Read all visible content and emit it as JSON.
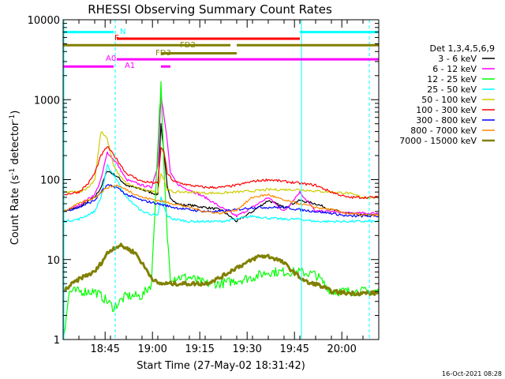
{
  "chart_data": {
    "type": "line",
    "title": "RHESSI Observing Summary Count Rates",
    "xlabel": "Start Time (27-May-02 18:31:42)",
    "ylabel_main": "Count Rate (s",
    "ylabel_sup1": "-1",
    "ylabel_mid": " detector",
    "ylabel_sup2": "-1",
    "ylabel_end": ")",
    "y_scale": "log",
    "ylim": [
      1,
      10000
    ],
    "xlim_minutes": [
      0,
      100
    ],
    "x_tick_minutes": [
      13.3,
      28.3,
      43.3,
      58.3,
      73.3,
      88.3
    ],
    "x_tick_labels": [
      "18:45",
      "19:00",
      "19:15",
      "19:30",
      "19:45",
      "20:00"
    ],
    "y_tick_values": [
      1,
      10,
      100,
      1000,
      10000
    ],
    "y_tick_labels": [
      "1",
      "10",
      "100",
      "1000",
      "10000"
    ],
    "legend_title": "Det 1,3,4,5,6,9",
    "legend_position": "right",
    "timestamp": "16-Oct-2021 08:28",
    "series": [
      {
        "name": "3 - 6 keV",
        "color": "#000000",
        "x": [
          0,
          5,
          10,
          12,
          14,
          17,
          20,
          25,
          30,
          31,
          32,
          33,
          34,
          36,
          38,
          40,
          45,
          50,
          55,
          60,
          65,
          70,
          75,
          80,
          85,
          90,
          95,
          100
        ],
        "y": [
          40,
          45,
          60,
          80,
          130,
          110,
          85,
          75,
          65,
          500,
          200,
          80,
          60,
          50,
          48,
          48,
          45,
          42,
          30,
          40,
          55,
          45,
          55,
          50,
          42,
          38,
          36,
          36
        ]
      },
      {
        "name": "6 - 12 keV",
        "color": "#ff00ff",
        "x": [
          0,
          5,
          10,
          12,
          14,
          17,
          20,
          25,
          28,
          30,
          31,
          32,
          33,
          34,
          36,
          38,
          40,
          45,
          50,
          55,
          60,
          65,
          70,
          75,
          80,
          85,
          90,
          95,
          100
        ],
        "y": [
          40,
          48,
          65,
          100,
          220,
          160,
          100,
          85,
          80,
          150,
          1200,
          600,
          300,
          120,
          90,
          80,
          75,
          60,
          45,
          35,
          45,
          60,
          40,
          70,
          40,
          40,
          38,
          38,
          38
        ]
      },
      {
        "name": "12 - 25 keV",
        "color": "#00ff00",
        "x": [
          0,
          2,
          5,
          10,
          12,
          14,
          16,
          18,
          20,
          25,
          28,
          29.5,
          30.5,
          31,
          32,
          33,
          34,
          36,
          40,
          45,
          50,
          55,
          60,
          65,
          70,
          75,
          80,
          85,
          90,
          95,
          100
        ],
        "y": [
          1,
          4,
          4,
          4,
          3.5,
          3,
          2.5,
          3,
          3.5,
          3.5,
          5,
          100,
          700,
          1500,
          120,
          20,
          6,
          6,
          6,
          5,
          5,
          5.5,
          6,
          7,
          7,
          7,
          6.5,
          4,
          4,
          4,
          4
        ]
      },
      {
        "name": "25 - 50 keV",
        "color": "#00ffff",
        "x": [
          0,
          5,
          10,
          12,
          14,
          17,
          20,
          25,
          30,
          31,
          32,
          33,
          35,
          40,
          45,
          50,
          55,
          60,
          65,
          70,
          75,
          80,
          85,
          90,
          95,
          100
        ],
        "y": [
          30,
          32,
          40,
          60,
          150,
          100,
          60,
          40,
          35,
          60,
          45,
          35,
          32,
          30,
          30,
          30,
          32,
          35,
          33,
          32,
          32,
          30,
          30,
          30,
          30,
          30
        ],
        "thin": true
      },
      {
        "name": "50 - 100 keV",
        "color": "#cccc00",
        "x": [
          0,
          5,
          8,
          10,
          12,
          14,
          16,
          18,
          20,
          25,
          30,
          31,
          32,
          33,
          35,
          40,
          45,
          50,
          55,
          60,
          65,
          70,
          75,
          80,
          85,
          90,
          95,
          100
        ],
        "y": [
          70,
          70,
          80,
          100,
          400,
          320,
          150,
          110,
          90,
          75,
          70,
          120,
          100,
          75,
          70,
          70,
          68,
          68,
          70,
          72,
          75,
          75,
          75,
          72,
          70,
          68,
          60,
          60
        ]
      },
      {
        "name": "100 - 300 keV",
        "color": "#ff0000",
        "x": [
          0,
          5,
          8,
          10,
          12,
          14,
          17,
          20,
          25,
          30,
          31,
          32,
          33,
          35,
          40,
          45,
          50,
          55,
          60,
          65,
          70,
          75,
          80,
          85,
          90,
          95,
          100
        ],
        "y": [
          65,
          70,
          90,
          120,
          200,
          260,
          180,
          120,
          95,
          90,
          250,
          220,
          120,
          95,
          85,
          80,
          80,
          85,
          95,
          100,
          95,
          90,
          85,
          70,
          60,
          60,
          60
        ]
      },
      {
        "name": "300 - 800 keV",
        "color": "#0000ff",
        "x": [
          0,
          5,
          10,
          12,
          14,
          17,
          20,
          25,
          30,
          35,
          40,
          45,
          50,
          55,
          60,
          65,
          70,
          75,
          80,
          85,
          90,
          95,
          100
        ],
        "y": [
          40,
          45,
          55,
          70,
          85,
          80,
          65,
          55,
          50,
          45,
          42,
          40,
          40,
          42,
          45,
          45,
          45,
          42,
          40,
          38,
          35,
          35,
          35
        ]
      },
      {
        "name": "800 - 7000 keV",
        "color": "#ff8800",
        "x": [
          0,
          5,
          10,
          14,
          17,
          20,
          25,
          30,
          35,
          40,
          45,
          50,
          55,
          60,
          65,
          70,
          75,
          80,
          85,
          90,
          95,
          100
        ],
        "y": [
          40,
          50,
          60,
          80,
          85,
          75,
          60,
          55,
          50,
          45,
          40,
          38,
          42,
          60,
          65,
          55,
          50,
          45,
          42,
          38,
          36,
          36
        ]
      },
      {
        "name": "7000 - 15000 keV",
        "color": "#808000",
        "x": [
          0,
          3,
          6,
          10,
          12,
          14,
          16,
          18,
          20,
          23,
          25,
          28,
          30,
          33,
          35,
          40,
          45,
          50,
          55,
          58,
          60,
          62,
          65,
          68,
          70,
          73,
          75,
          78,
          80,
          85,
          90,
          95,
          100
        ],
        "y": [
          4,
          5,
          6,
          7,
          9,
          12,
          14,
          15,
          14,
          12,
          9,
          6,
          5,
          5,
          5,
          5,
          5,
          6,
          8,
          9,
          10,
          11,
          11,
          10,
          9,
          7,
          6,
          5,
          5,
          4,
          3.8,
          3.8,
          3.8
        ],
        "thick": true
      }
    ],
    "state_bars": [
      {
        "label": "N",
        "color": "#00ffff",
        "segments": [
          [
            0,
            16
          ],
          [
            75,
            100
          ]
        ],
        "y": 7000
      },
      {
        "label": "F",
        "color": "#ff0000",
        "segments": [
          [
            17,
            75
          ]
        ],
        "y": 5800
      },
      {
        "label": "FD2",
        "color": "#808000",
        "segments": [
          [
            0,
            53
          ],
          [
            55,
            100
          ]
        ],
        "y": 4800
      },
      {
        "label": "FD3",
        "color": "#808000",
        "segments": [
          [
            31,
            55
          ]
        ],
        "y": 3800
      },
      {
        "label": "A0",
        "color": "#ff00ff",
        "segments": [
          [
            17,
            100
          ]
        ],
        "y": 3200
      },
      {
        "label": "A1",
        "color": "#ff00ff",
        "segments": [
          [
            0,
            16
          ],
          [
            31,
            34
          ]
        ],
        "y": 2600
      }
    ],
    "vlines": [
      {
        "x": 16.5,
        "color": "#00ffff",
        "dashed": true
      },
      {
        "x": 75.5,
        "color": "#00ffff",
        "dashed": false
      },
      {
        "x": 97,
        "color": "#00ffff",
        "dashed": true
      }
    ]
  }
}
